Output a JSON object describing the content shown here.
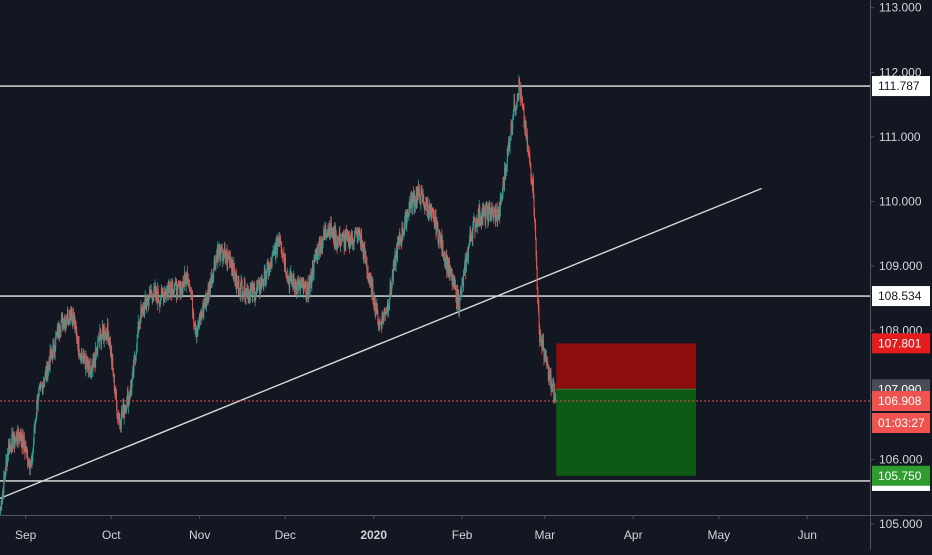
{
  "chart_data": {
    "type": "candlestick",
    "price_axis": {
      "ylim": [
        104.6,
        113.12
      ],
      "ticks": [
        113.0,
        112.0,
        111.0,
        110.0,
        109.0,
        108.0,
        107.0,
        106.0,
        105.0
      ],
      "tick_labels": [
        "113.000",
        "112.000",
        "111.000",
        "110.000",
        "109.000",
        "108.000",
        "107.000",
        "106.000",
        "105.000"
      ]
    },
    "time_axis": {
      "labels": [
        "Sep",
        "Oct",
        "Nov",
        "Dec",
        "2020",
        "Feb",
        "Mar",
        "Apr",
        "May",
        "Jun"
      ],
      "dates": [
        "2019-09-01",
        "2019-10-01",
        "2019-11-01",
        "2019-12-01",
        "2020-01-01",
        "2020-02-01",
        "2020-03-01",
        "2020-04-01",
        "2020-05-01",
        "2020-06-01"
      ],
      "xlim": [
        "2019-08-23",
        "2020-06-23"
      ]
    },
    "horizontal_levels": [
      {
        "value": 111.787,
        "label": "111.787"
      },
      {
        "value": 108.534,
        "label": "108.534"
      },
      {
        "value": 105.67,
        "label": "105.670"
      }
    ],
    "trendline": {
      "start": {
        "date": "2019-08-23",
        "value": 105.4
      },
      "end": {
        "date": "2020-05-16",
        "value": 110.2
      }
    },
    "current_price": {
      "value": 106.908,
      "label": "106.908",
      "countdown": "01:03:27"
    },
    "position": {
      "entry": 107.09,
      "entry_label": "107.090",
      "stop": 107.801,
      "stop_label": "107.801",
      "target": 105.75,
      "target_label": "105.750",
      "start_date": "2020-03-05",
      "end_date": "2020-04-23"
    },
    "price_path": [
      [
        "2019-08-23",
        105.2
      ],
      [
        "2019-08-26",
        106.2
      ],
      [
        "2019-08-30",
        106.4
      ],
      [
        "2019-09-03",
        105.9
      ],
      [
        "2019-09-05",
        106.9
      ],
      [
        "2019-09-10",
        107.6
      ],
      [
        "2019-09-13",
        108.1
      ],
      [
        "2019-09-17",
        108.3
      ],
      [
        "2019-09-20",
        107.7
      ],
      [
        "2019-09-24",
        107.3
      ],
      [
        "2019-09-27",
        107.9
      ],
      [
        "2019-09-30",
        108.0
      ],
      [
        "2019-10-03",
        106.8
      ],
      [
        "2019-10-04",
        106.6
      ],
      [
        "2019-10-08",
        107.1
      ],
      [
        "2019-10-11",
        108.2
      ],
      [
        "2019-10-15",
        108.6
      ],
      [
        "2019-10-18",
        108.5
      ],
      [
        "2019-10-22",
        108.7
      ],
      [
        "2019-10-25",
        108.6
      ],
      [
        "2019-10-28",
        108.9
      ],
      [
        "2019-10-30",
        108.2
      ],
      [
        "2019-10-31",
        108.0
      ],
      [
        "2019-11-04",
        108.6
      ],
      [
        "2019-11-07",
        109.2
      ],
      [
        "2019-11-12",
        109.1
      ],
      [
        "2019-11-14",
        108.7
      ],
      [
        "2019-11-18",
        108.6
      ],
      [
        "2019-11-21",
        108.6
      ],
      [
        "2019-11-26",
        109.0
      ],
      [
        "2019-11-29",
        109.5
      ],
      [
        "2019-12-02",
        108.8
      ],
      [
        "2019-12-05",
        108.7
      ],
      [
        "2019-12-09",
        108.6
      ],
      [
        "2019-12-12",
        109.2
      ],
      [
        "2019-12-16",
        109.6
      ],
      [
        "2019-12-19",
        109.4
      ],
      [
        "2019-12-24",
        109.4
      ],
      [
        "2019-12-27",
        109.5
      ],
      [
        "2019-12-31",
        108.7
      ],
      [
        "2020-01-03",
        108.1
      ],
      [
        "2020-01-06",
        108.4
      ],
      [
        "2020-01-09",
        109.2
      ],
      [
        "2020-01-14",
        110.0
      ],
      [
        "2020-01-17",
        110.1
      ],
      [
        "2020-01-20",
        109.9
      ],
      [
        "2020-01-23",
        109.6
      ],
      [
        "2020-01-27",
        109.0
      ],
      [
        "2020-01-31",
        108.4
      ],
      [
        "2020-02-04",
        109.5
      ],
      [
        "2020-02-07",
        109.8
      ],
      [
        "2020-02-11",
        109.8
      ],
      [
        "2020-02-14",
        109.8
      ],
      [
        "2020-02-19",
        111.4
      ],
      [
        "2020-02-21",
        111.8
      ],
      [
        "2020-02-24",
        110.8
      ],
      [
        "2020-02-26",
        110.2
      ],
      [
        "2020-02-28",
        108.0
      ],
      [
        "2020-03-03",
        107.2
      ],
      [
        "2020-03-05",
        106.9
      ]
    ]
  }
}
